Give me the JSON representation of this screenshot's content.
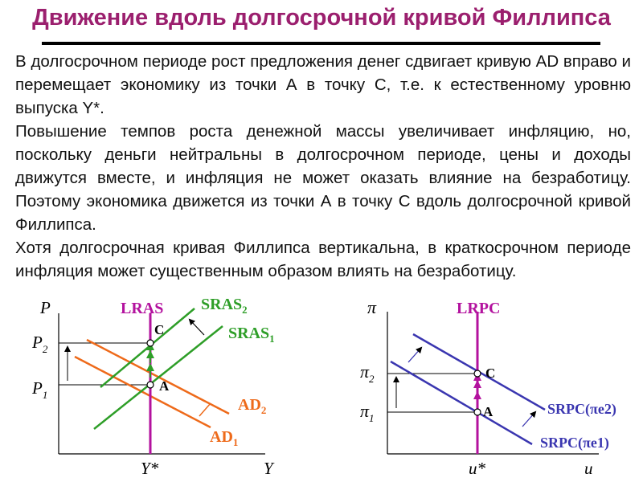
{
  "title": "Движение вдоль долгосрочной кривой Филлипса",
  "paragraphs": [
    "В долгосрочном периоде рост предложения денег сдвигает кривую AD вправо и перемещает экономику из точки А в точку С, т.е. к естественному уровню выпуска Y*.",
    "Повышение темпов роста денежной массы увеличивает инфляцию, но, поскольку деньги нейтральны в долгосрочном периоде, цены и доходы движутся вместе, и инфляция не может оказать влияние на безработицу. Поэтому экономика движется из точки А в точку С вдоль долгосрочной кривой Филлипса.",
    "Хотя долгосрочная кривая Филлипса вертикальна, в краткосрочном периоде инфляция может существенным образом влиять на безработицу."
  ],
  "left_chart": {
    "y_axis_label": "P",
    "x_axis_label": "Y",
    "tick_p2": "P",
    "tick_p2_sub": "2",
    "tick_p1": "P",
    "tick_p1_sub": "1",
    "tick_ystar": "Y*",
    "lras_label": "LRAS",
    "sras2_label": "SRAS",
    "sras2_sub": "2",
    "sras1_label": "SRAS",
    "sras1_sub": "1",
    "ad2_label": "AD",
    "ad2_sub": "2",
    "ad1_label": "AD",
    "ad1_sub": "1",
    "point_c": "C",
    "point_a": "A"
  },
  "right_chart": {
    "y_axis_label": "π",
    "x_axis_label": "u",
    "tick_pi2": "π",
    "tick_pi2_sub": "2",
    "tick_pi1": "π",
    "tick_pi1_sub": "1",
    "tick_ustar": "u*",
    "lrpc_label": "LRPC",
    "srpc2_label": "SRPC(πe2)",
    "srpc1_label": "SRPC(πe1)",
    "point_c": "C",
    "point_a": "A"
  },
  "colors": {
    "title": "#9b1f6e",
    "lras": "#b3129e",
    "sras": "#2e9e28",
    "ad": "#ee6a1a",
    "srpc": "#3a36b0",
    "arrows_up": "#2e9e28"
  }
}
